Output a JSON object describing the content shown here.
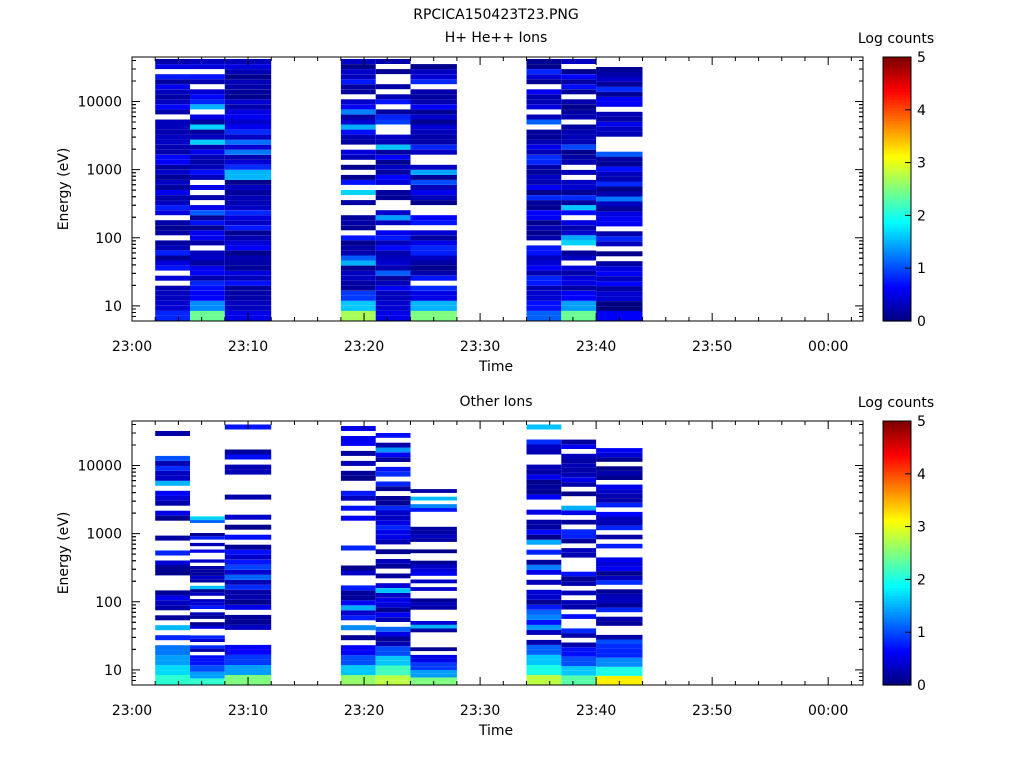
{
  "figure": {
    "title": "RPCICA150423T23.PNG"
  },
  "chart_data": [
    {
      "type": "heatmap",
      "title": "H+ He++ Ions",
      "xlabel": "Time",
      "ylabel": "Energy (eV)",
      "yscale": "log",
      "ylim": [
        6,
        45000
      ],
      "xlim": [
        "23:00",
        "00:03"
      ],
      "xticks": [
        "23:00",
        "23:10",
        "23:20",
        "23:30",
        "23:40",
        "23:50",
        "00:00"
      ],
      "yticks": [
        "10",
        "100",
        "1000",
        "10000"
      ],
      "colorbar": {
        "label": "Log counts",
        "range": [
          0,
          5
        ],
        "ticks": [
          "0",
          "1",
          "2",
          "3",
          "4",
          "5"
        ]
      },
      "columns": [
        {
          "start": "23:02",
          "end": "23:05",
          "bottom": 6,
          "top": 42000,
          "fill": 0.88,
          "low_energy_log_counts": [
            0.8,
            0.4,
            0.3
          ]
        },
        {
          "start": "23:05",
          "end": "23:08",
          "bottom": 6,
          "top": 42000,
          "fill": 0.8,
          "low_energy_log_counts": [
            2.4,
            1.3,
            0.6
          ]
        },
        {
          "start": "23:08",
          "end": "23:12",
          "bottom": 6,
          "top": 42000,
          "fill": 0.92,
          "low_energy_log_counts": [
            0.5,
            0.3,
            0.2
          ]
        },
        {
          "start": "23:18",
          "end": "23:21",
          "bottom": 6,
          "top": 42000,
          "fill": 0.82,
          "low_energy_log_counts": [
            2.7,
            1.6,
            0.9
          ]
        },
        {
          "start": "23:21",
          "end": "23:24",
          "bottom": 6,
          "top": 42000,
          "fill": 0.88,
          "low_energy_log_counts": [
            0.5,
            0.4,
            0.3
          ]
        },
        {
          "start": "23:24",
          "end": "23:28",
          "bottom": 6,
          "top": 42000,
          "fill": 0.83,
          "low_energy_log_counts": [
            2.5,
            1.5,
            0.5
          ]
        },
        {
          "start": "23:34",
          "end": "23:37",
          "bottom": 6,
          "top": 42000,
          "fill": 0.88,
          "low_energy_log_counts": [
            1.1,
            0.7,
            0.4
          ]
        },
        {
          "start": "23:37",
          "end": "23:40",
          "bottom": 6,
          "top": 42000,
          "fill": 0.85,
          "low_energy_log_counts": [
            2.4,
            1.4,
            0.6
          ]
        },
        {
          "start": "23:40",
          "end": "23:44",
          "bottom": 6,
          "top": 38000,
          "fill": 0.86,
          "low_energy_log_counts": [
            0.6,
            0.0,
            0.4
          ]
        }
      ]
    },
    {
      "type": "heatmap",
      "title": "Other Ions",
      "xlabel": "Time",
      "ylabel": "Energy (eV)",
      "yscale": "log",
      "ylim": [
        6,
        45000
      ],
      "xlim": [
        "23:00",
        "00:03"
      ],
      "xticks": [
        "23:00",
        "23:10",
        "23:20",
        "23:30",
        "23:40",
        "23:50",
        "00:00"
      ],
      "yticks": [
        "10",
        "100",
        "1000",
        "10000"
      ],
      "colorbar": {
        "label": "Log counts",
        "range": [
          0,
          5
        ],
        "ticks": [
          "0",
          "1",
          "2",
          "3",
          "4",
          "5"
        ]
      },
      "columns": [
        {
          "start": "23:02",
          "end": "23:05",
          "bottom": 6,
          "top": 38000,
          "fill": 0.55,
          "low_energy_log_counts": [
            2.1,
            1.7,
            1.4,
            1.2
          ]
        },
        {
          "start": "23:05",
          "end": "23:08",
          "bottom": 6,
          "top": 2000,
          "fill": 0.55,
          "low_energy_log_counts": [
            2.1,
            1.4,
            1.0,
            0.7
          ]
        },
        {
          "start": "23:08",
          "end": "23:12",
          "bottom": 6,
          "top": 40000,
          "fill": 0.65,
          "low_energy_log_counts": [
            2.5,
            1.4,
            0.9,
            0.6
          ]
        },
        {
          "start": "23:18",
          "end": "23:21",
          "bottom": 6,
          "top": 38000,
          "fill": 0.5,
          "low_energy_log_counts": [
            2.6,
            1.6,
            1.0,
            0.6
          ]
        },
        {
          "start": "23:21",
          "end": "23:24",
          "bottom": 6,
          "top": 30000,
          "fill": 0.7,
          "low_energy_log_counts": [
            2.8,
            2.2,
            1.6,
            1.0
          ]
        },
        {
          "start": "23:24",
          "end": "23:28",
          "bottom": 6,
          "top": 4500,
          "fill": 0.6,
          "low_energy_log_counts": [
            2.5,
            1.4,
            0.9,
            0.5
          ]
        },
        {
          "start": "23:34",
          "end": "23:37",
          "bottom": 6,
          "top": 40000,
          "fill": 0.62,
          "low_energy_log_counts": [
            2.8,
            2.0,
            1.6,
            1.1
          ]
        },
        {
          "start": "23:37",
          "end": "23:40",
          "bottom": 6,
          "top": 24000,
          "fill": 0.62,
          "low_energy_log_counts": [
            2.3,
            1.6,
            1.0,
            0.7
          ]
        },
        {
          "start": "23:40",
          "end": "23:44",
          "bottom": 6,
          "top": 18000,
          "fill": 0.7,
          "low_energy_log_counts": [
            3.2,
            2.0,
            1.3,
            0.8
          ]
        }
      ]
    }
  ]
}
